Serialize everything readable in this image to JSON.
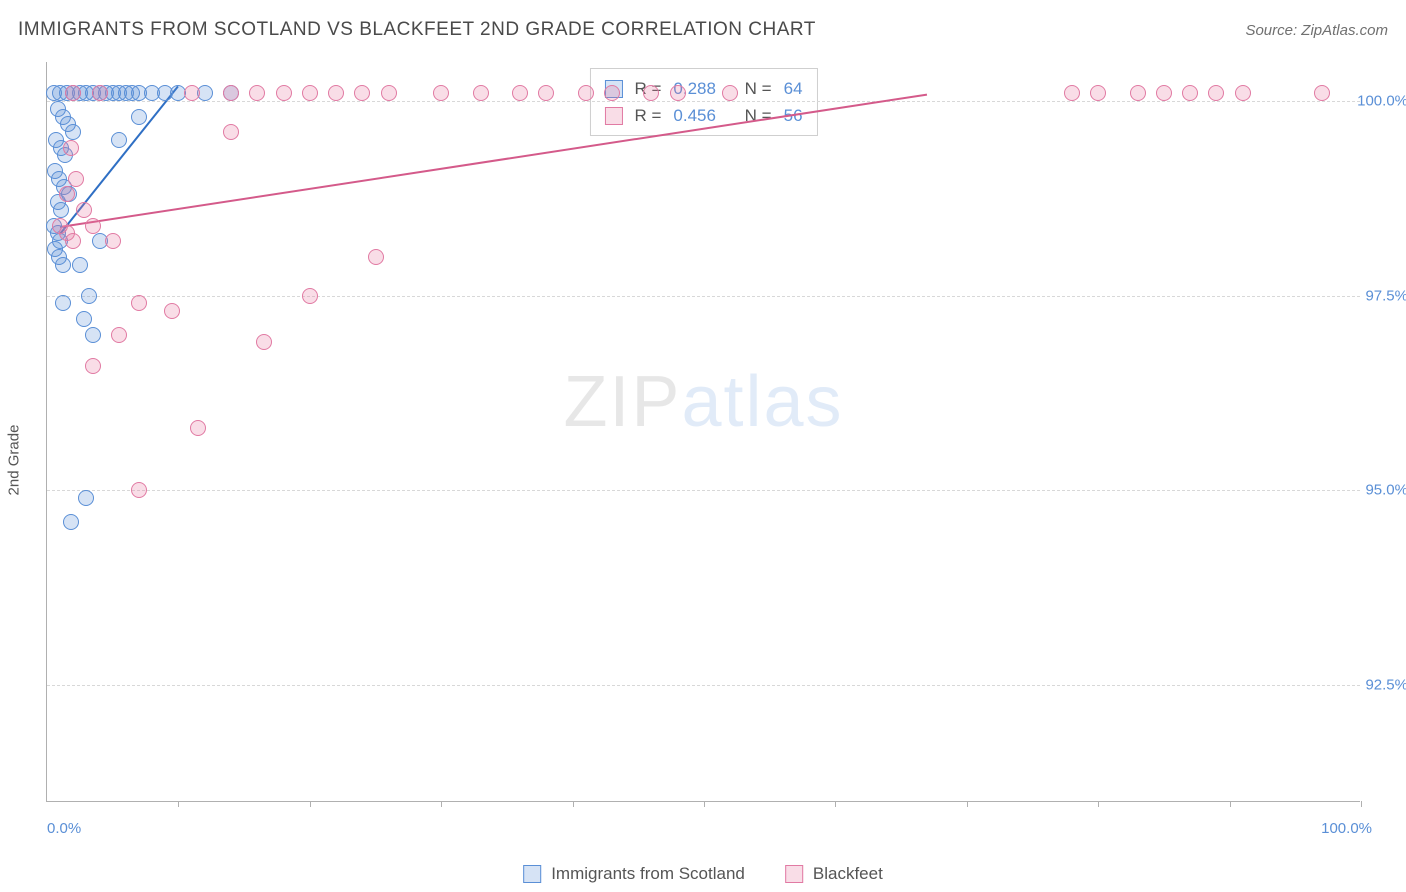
{
  "header": {
    "title": "IMMIGRANTS FROM SCOTLAND VS BLACKFEET 2ND GRADE CORRELATION CHART",
    "source": "Source: ZipAtlas.com"
  },
  "chart": {
    "type": "scatter",
    "ylabel": "2nd Grade",
    "xlim": [
      0,
      100
    ],
    "ylim": [
      91.0,
      100.5
    ],
    "yticks": [
      92.5,
      95.0,
      97.5,
      100.0
    ],
    "ytick_labels": [
      "92.5%",
      "95.0%",
      "97.5%",
      "100.0%"
    ],
    "xaxis_min_label": "0.0%",
    "xaxis_max_label": "100.0%",
    "xticks_pos": [
      10,
      20,
      30,
      40,
      50,
      60,
      70,
      80,
      90,
      100
    ],
    "grid_color": "#d8d8d8",
    "background_color": "#ffffff",
    "axis_color": "#b0b0b0",
    "tick_label_color": "#5a8fd6",
    "marker_radius": 8,
    "marker_stroke_width": 1.5,
    "watermark": {
      "text_a": "ZIP",
      "text_b": "atlas"
    },
    "series": [
      {
        "name": "Immigrants from Scotland",
        "fill": "rgba(90,143,214,0.25)",
        "stroke": "#5a8fd6",
        "R": "0.288",
        "N": "64",
        "trend": {
          "x1": 1,
          "y1": 98.3,
          "x2": 10,
          "y2": 100.2,
          "color": "#2f6fc4",
          "width": 2
        },
        "points": [
          [
            0.5,
            100.1
          ],
          [
            1,
            100.1
          ],
          [
            1.5,
            100.1
          ],
          [
            2,
            100.1
          ],
          [
            2.5,
            100.1
          ],
          [
            3,
            100.1
          ],
          [
            3.5,
            100.1
          ],
          [
            4,
            100.1
          ],
          [
            4.5,
            100.1
          ],
          [
            5,
            100.1
          ],
          [
            5.5,
            100.1
          ],
          [
            6,
            100.1
          ],
          [
            6.5,
            100.1
          ],
          [
            7,
            100.1
          ],
          [
            8,
            100.1
          ],
          [
            9,
            100.1
          ],
          [
            10,
            100.1
          ],
          [
            12,
            100.1
          ],
          [
            14,
            100.1
          ],
          [
            0.8,
            99.9
          ],
          [
            1.2,
            99.8
          ],
          [
            1.6,
            99.7
          ],
          [
            2.0,
            99.6
          ],
          [
            0.7,
            99.5
          ],
          [
            1.1,
            99.4
          ],
          [
            1.4,
            99.3
          ],
          [
            0.6,
            99.1
          ],
          [
            0.9,
            99.0
          ],
          [
            1.3,
            98.9
          ],
          [
            1.7,
            98.8
          ],
          [
            0.8,
            98.7
          ],
          [
            1.1,
            98.6
          ],
          [
            0.5,
            98.4
          ],
          [
            0.8,
            98.3
          ],
          [
            1.0,
            98.2
          ],
          [
            0.6,
            98.1
          ],
          [
            0.9,
            98.0
          ],
          [
            1.2,
            97.9
          ],
          [
            2.5,
            97.9
          ],
          [
            4.0,
            98.2
          ],
          [
            5.5,
            99.5
          ],
          [
            7,
            99.8
          ],
          [
            1.2,
            97.4
          ],
          [
            3.2,
            97.5
          ],
          [
            2.8,
            97.2
          ],
          [
            3.5,
            97.0
          ],
          [
            3.0,
            94.9
          ],
          [
            1.8,
            94.6
          ]
        ]
      },
      {
        "name": "Blackfeet",
        "fill": "rgba(230,120,160,0.25)",
        "stroke": "#e17aa3",
        "R": "0.456",
        "N": "56",
        "trend": {
          "x1": 1,
          "y1": 98.4,
          "x2": 67,
          "y2": 100.1,
          "color": "#d45a8a",
          "width": 2
        },
        "points": [
          [
            2,
            100.1
          ],
          [
            4,
            100.1
          ],
          [
            11,
            100.1
          ],
          [
            14,
            100.1
          ],
          [
            16,
            100.1
          ],
          [
            18,
            100.1
          ],
          [
            20,
            100.1
          ],
          [
            22,
            100.1
          ],
          [
            24,
            100.1
          ],
          [
            26,
            100.1
          ],
          [
            30,
            100.1
          ],
          [
            33,
            100.1
          ],
          [
            36,
            100.1
          ],
          [
            38,
            100.1
          ],
          [
            41,
            100.1
          ],
          [
            43,
            100.1
          ],
          [
            46,
            100.1
          ],
          [
            48,
            100.1
          ],
          [
            52,
            100.1
          ],
          [
            78,
            100.1
          ],
          [
            80,
            100.1
          ],
          [
            83,
            100.1
          ],
          [
            85,
            100.1
          ],
          [
            87,
            100.1
          ],
          [
            89,
            100.1
          ],
          [
            91,
            100.1
          ],
          [
            97,
            100.1
          ],
          [
            14,
            99.6
          ],
          [
            1.8,
            99.4
          ],
          [
            2.2,
            99.0
          ],
          [
            1.5,
            98.8
          ],
          [
            2.8,
            98.6
          ],
          [
            3.5,
            98.4
          ],
          [
            1.0,
            98.4
          ],
          [
            1.5,
            98.3
          ],
          [
            2.0,
            98.2
          ],
          [
            5.0,
            98.2
          ],
          [
            25,
            98.0
          ],
          [
            20,
            97.5
          ],
          [
            9.5,
            97.3
          ],
          [
            7.0,
            97.4
          ],
          [
            5.5,
            97.0
          ],
          [
            16.5,
            96.9
          ],
          [
            3.5,
            96.6
          ],
          [
            11.5,
            95.8
          ],
          [
            7.0,
            95.0
          ]
        ]
      }
    ],
    "legend_labels": {
      "R": "R =",
      "N": "N ="
    },
    "bottom_legend": [
      {
        "label": "Immigrants from Scotland",
        "fill": "rgba(90,143,214,0.25)",
        "stroke": "#5a8fd6"
      },
      {
        "label": "Blackfeet",
        "fill": "rgba(230,120,160,0.25)",
        "stroke": "#e17aa3"
      }
    ]
  }
}
